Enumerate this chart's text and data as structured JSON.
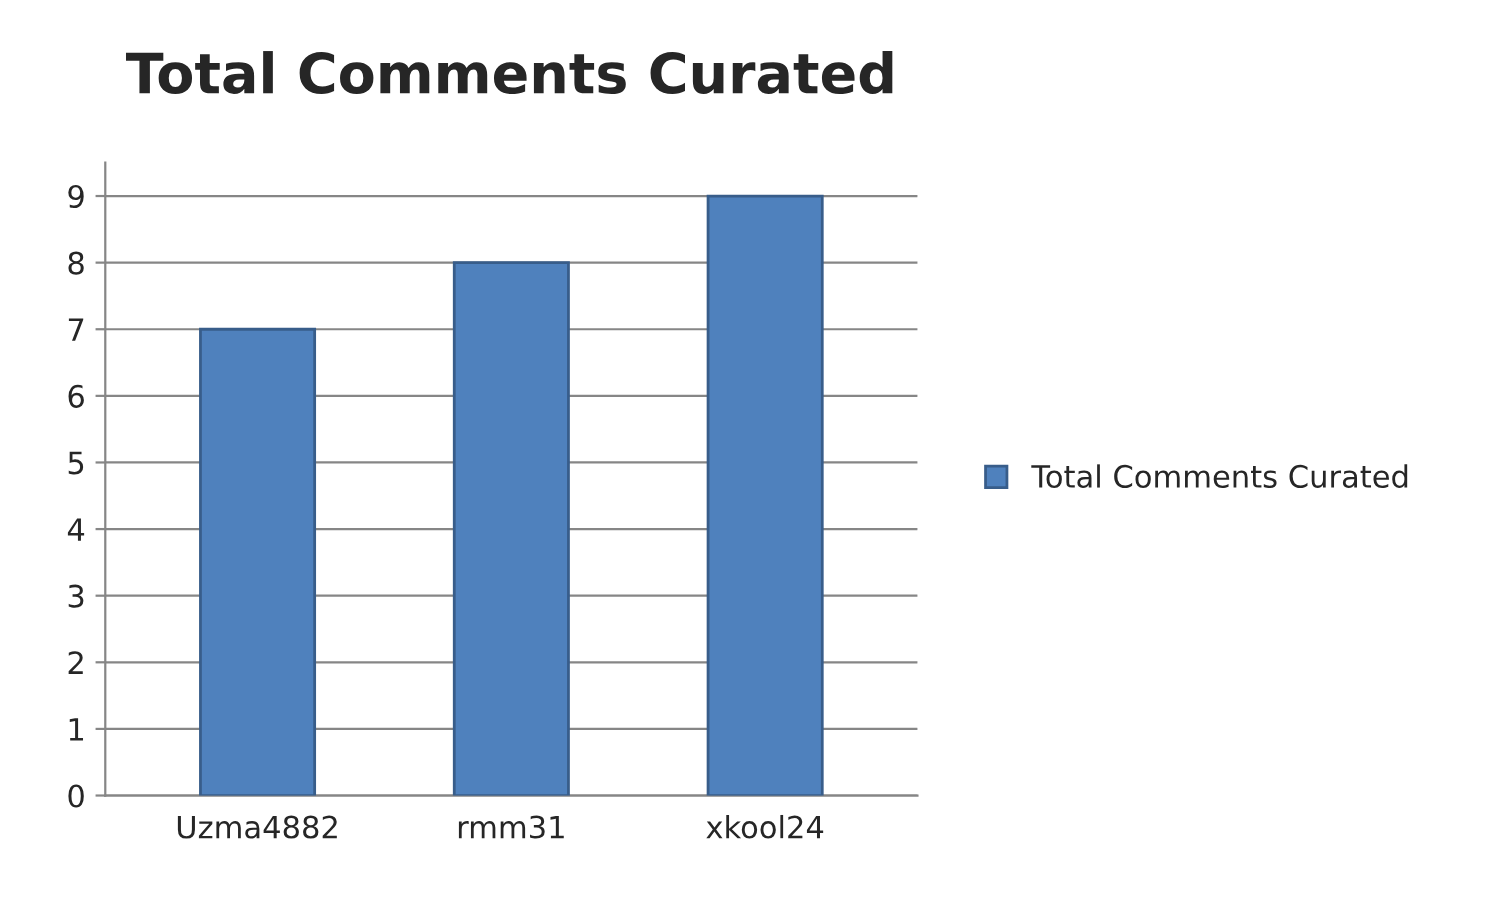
{
  "chart_data": {
    "type": "bar",
    "title": "Total Comments Curated",
    "categories": [
      "Uzma4882",
      "rmm31",
      "xkool24"
    ],
    "series": [
      {
        "name": "Total Comments Curated",
        "color": "#4f81bd",
        "values": [
          7,
          8,
          9
        ]
      }
    ],
    "ylim": [
      0,
      9.5
    ],
    "yticks": [
      0,
      1,
      2,
      3,
      4,
      5,
      6,
      7,
      8,
      9
    ],
    "grid": "y",
    "legend": "right"
  }
}
